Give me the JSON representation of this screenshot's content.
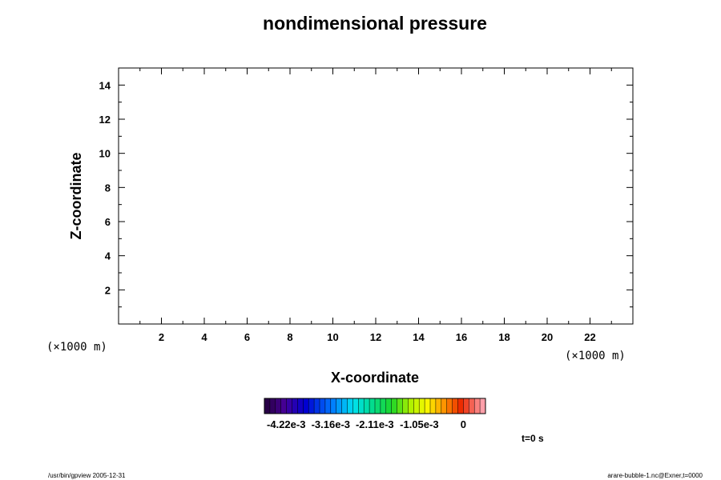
{
  "chart_data": {
    "type": "heatmap",
    "title": "nondimensional pressure",
    "xlabel": "X-coordinate",
    "ylabel": "Z-coordinate",
    "xlim": [
      0,
      24
    ],
    "ylim": [
      0,
      15
    ],
    "x_unit_label": "(×1000 m)",
    "y_unit_label": "(×1000 m)",
    "x_ticks": [
      2,
      4,
      6,
      8,
      10,
      12,
      14,
      16,
      18,
      20,
      22
    ],
    "y_ticks": [
      2,
      4,
      6,
      8,
      10,
      12,
      14
    ],
    "x_minor_step": 1,
    "y_minor_step": 1,
    "field_values": [],
    "colorbar": {
      "range": [
        -0.00474,
        0.000527
      ],
      "tick_labels": [
        "-4.22e-3",
        "-3.16e-3",
        "-2.11e-3",
        "-1.05e-3",
        "0"
      ],
      "tick_values": [
        -0.00422,
        -0.00316,
        -0.00211,
        -0.00105,
        0
      ],
      "levels": 40,
      "colormap": "rainbow"
    },
    "time_label": "t=0 s",
    "footer_left": "/usr/bin/gpview 2005-12-31",
    "footer_right": "arare-bubble-1.nc@Exner,t=0000",
    "grid": false
  }
}
